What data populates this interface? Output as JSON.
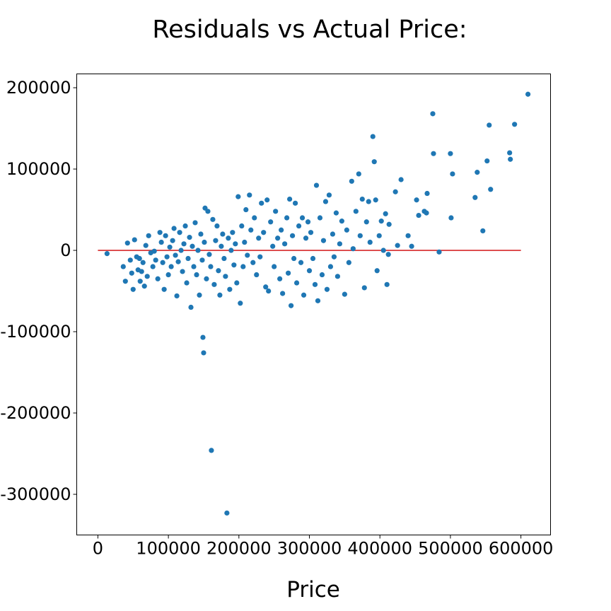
{
  "chart_data": {
    "type": "scatter",
    "title": "Residuals vs Actual Price:",
    "xlabel": "Price",
    "ylabel": "",
    "xlim": [
      -30000,
      642000
    ],
    "ylim": [
      -350000,
      217000
    ],
    "xticks": [
      0,
      100000,
      200000,
      300000,
      400000,
      500000,
      600000
    ],
    "xtick_labels": [
      "0",
      "100000",
      "200000",
      "300000",
      "400000",
      "500000",
      "600000"
    ],
    "yticks": [
      200000,
      100000,
      0,
      -100000,
      -200000,
      -300000
    ],
    "ytick_labels": [
      "200000",
      "100000",
      "0",
      "-100000",
      "-200000",
      "-300000"
    ],
    "grid": false,
    "point_color": "#1f77b4",
    "reference_line": {
      "x": [
        0,
        600000
      ],
      "y": [
        0,
        0
      ],
      "color": "#d62728"
    },
    "series": [
      {
        "points": [
          [
            13000,
            -4000
          ],
          [
            36000,
            -20000
          ],
          [
            39000,
            -38000
          ],
          [
            42000,
            9000
          ],
          [
            46000,
            -12000
          ],
          [
            48000,
            -28000
          ],
          [
            50000,
            -48000
          ],
          [
            52000,
            13000
          ],
          [
            55000,
            -8000
          ],
          [
            57000,
            -24000
          ],
          [
            59000,
            -10000
          ],
          [
            60000,
            -38000
          ],
          [
            62000,
            -26000
          ],
          [
            64000,
            -15000
          ],
          [
            66000,
            -44000
          ],
          [
            68000,
            6000
          ],
          [
            70000,
            -32000
          ],
          [
            72000,
            18000
          ],
          [
            75000,
            -3000
          ],
          [
            78000,
            -20000
          ],
          [
            80000,
            -1000
          ],
          [
            82000,
            -12000
          ],
          [
            85000,
            -35000
          ],
          [
            88000,
            22000
          ],
          [
            90000,
            10000
          ],
          [
            92000,
            -15000
          ],
          [
            94000,
            -48000
          ],
          [
            96000,
            18000
          ],
          [
            98000,
            -8000
          ],
          [
            100000,
            -30000
          ],
          [
            102000,
            4000
          ],
          [
            104000,
            -20000
          ],
          [
            106000,
            12000
          ],
          [
            108000,
            27000
          ],
          [
            110000,
            -6000
          ],
          [
            112000,
            -56000
          ],
          [
            114000,
            -14000
          ],
          [
            116000,
            22000
          ],
          [
            118000,
            0
          ],
          [
            120000,
            -26000
          ],
          [
            122000,
            8000
          ],
          [
            124000,
            30000
          ],
          [
            126000,
            -40000
          ],
          [
            128000,
            -10000
          ],
          [
            130000,
            16000
          ],
          [
            132000,
            -70000
          ],
          [
            134000,
            5000
          ],
          [
            136000,
            -20000
          ],
          [
            138000,
            34000
          ],
          [
            140000,
            -30000
          ],
          [
            142000,
            0
          ],
          [
            144000,
            -55000
          ],
          [
            146000,
            20000
          ],
          [
            148000,
            -12000
          ],
          [
            149000,
            -107000
          ],
          [
            150000,
            -126000
          ],
          [
            151000,
            10000
          ],
          [
            152000,
            52000
          ],
          [
            154000,
            -35000
          ],
          [
            156000,
            48000
          ],
          [
            158000,
            -5000
          ],
          [
            160000,
            -20000
          ],
          [
            161000,
            -246000
          ],
          [
            163000,
            38000
          ],
          [
            165000,
            -42000
          ],
          [
            167000,
            12000
          ],
          [
            169000,
            30000
          ],
          [
            171000,
            -25000
          ],
          [
            173000,
            -55000
          ],
          [
            175000,
            5000
          ],
          [
            177000,
            20000
          ],
          [
            179000,
            -10000
          ],
          [
            181000,
            -32000
          ],
          [
            183000,
            -323000
          ],
          [
            185000,
            15000
          ],
          [
            187000,
            -48000
          ],
          [
            189000,
            0
          ],
          [
            191000,
            22000
          ],
          [
            193000,
            -18000
          ],
          [
            195000,
            8000
          ],
          [
            197000,
            -40000
          ],
          [
            199000,
            66000
          ],
          [
            202000,
            -65000
          ],
          [
            204000,
            30000
          ],
          [
            206000,
            -20000
          ],
          [
            208000,
            10000
          ],
          [
            210000,
            50000
          ],
          [
            212000,
            -6000
          ],
          [
            215000,
            68000
          ],
          [
            217000,
            25000
          ],
          [
            220000,
            -15000
          ],
          [
            222000,
            40000
          ],
          [
            225000,
            -30000
          ],
          [
            228000,
            15000
          ],
          [
            230000,
            -8000
          ],
          [
            232000,
            58000
          ],
          [
            235000,
            22000
          ],
          [
            238000,
            -45000
          ],
          [
            240000,
            62000
          ],
          [
            242000,
            -50000
          ],
          [
            245000,
            35000
          ],
          [
            248000,
            5000
          ],
          [
            250000,
            -20000
          ],
          [
            252000,
            48000
          ],
          [
            255000,
            15000
          ],
          [
            258000,
            -35000
          ],
          [
            260000,
            25000
          ],
          [
            262000,
            -53000
          ],
          [
            265000,
            8000
          ],
          [
            268000,
            40000
          ],
          [
            270000,
            -28000
          ],
          [
            272000,
            63000
          ],
          [
            274000,
            -68000
          ],
          [
            276000,
            18000
          ],
          [
            278000,
            -10000
          ],
          [
            280000,
            58000
          ],
          [
            282000,
            -40000
          ],
          [
            285000,
            30000
          ],
          [
            288000,
            -15000
          ],
          [
            290000,
            40000
          ],
          [
            292000,
            -55000
          ],
          [
            295000,
            15000
          ],
          [
            298000,
            35000
          ],
          [
            300000,
            -25000
          ],
          [
            302000,
            22000
          ],
          [
            305000,
            -10000
          ],
          [
            308000,
            -42000
          ],
          [
            310000,
            80000
          ],
          [
            312000,
            -62000
          ],
          [
            315000,
            40000
          ],
          [
            318000,
            -30000
          ],
          [
            320000,
            12000
          ],
          [
            323000,
            60000
          ],
          [
            325000,
            -48000
          ],
          [
            328000,
            68000
          ],
          [
            330000,
            -20000
          ],
          [
            333000,
            20000
          ],
          [
            335000,
            -8000
          ],
          [
            338000,
            46000
          ],
          [
            340000,
            -32000
          ],
          [
            343000,
            8000
          ],
          [
            346000,
            36000
          ],
          [
            350000,
            -54000
          ],
          [
            353000,
            25000
          ],
          [
            356000,
            -15000
          ],
          [
            360000,
            85000
          ],
          [
            362000,
            2000
          ],
          [
            366000,
            48000
          ],
          [
            370000,
            94000
          ],
          [
            372000,
            18000
          ],
          [
            375000,
            63000
          ],
          [
            378000,
            -46000
          ],
          [
            381000,
            35000
          ],
          [
            384000,
            60000
          ],
          [
            386000,
            10000
          ],
          [
            390000,
            140000
          ],
          [
            392000,
            109000
          ],
          [
            394000,
            62000
          ],
          [
            396000,
            -25000
          ],
          [
            399000,
            18000
          ],
          [
            402000,
            36000
          ],
          [
            405000,
            0
          ],
          [
            408000,
            45000
          ],
          [
            410000,
            -42000
          ],
          [
            412000,
            -5000
          ],
          [
            413000,
            32000
          ],
          [
            422000,
            72000
          ],
          [
            425000,
            6000
          ],
          [
            430000,
            87000
          ],
          [
            440000,
            18000
          ],
          [
            445000,
            5000
          ],
          [
            452000,
            62000
          ],
          [
            455000,
            43000
          ],
          [
            463000,
            48000
          ],
          [
            466000,
            46000
          ],
          [
            467000,
            70000
          ],
          [
            475000,
            168000
          ],
          [
            476000,
            119000
          ],
          [
            484000,
            -2000
          ],
          [
            500000,
            119000
          ],
          [
            501000,
            40000
          ],
          [
            503000,
            94000
          ],
          [
            535000,
            65000
          ],
          [
            538000,
            96000
          ],
          [
            546000,
            24000
          ],
          [
            552000,
            110000
          ],
          [
            555000,
            154000
          ],
          [
            557000,
            75000
          ],
          [
            584000,
            120000
          ],
          [
            585000,
            112000
          ],
          [
            591000,
            155000
          ],
          [
            610000,
            192000
          ]
        ]
      }
    ]
  }
}
